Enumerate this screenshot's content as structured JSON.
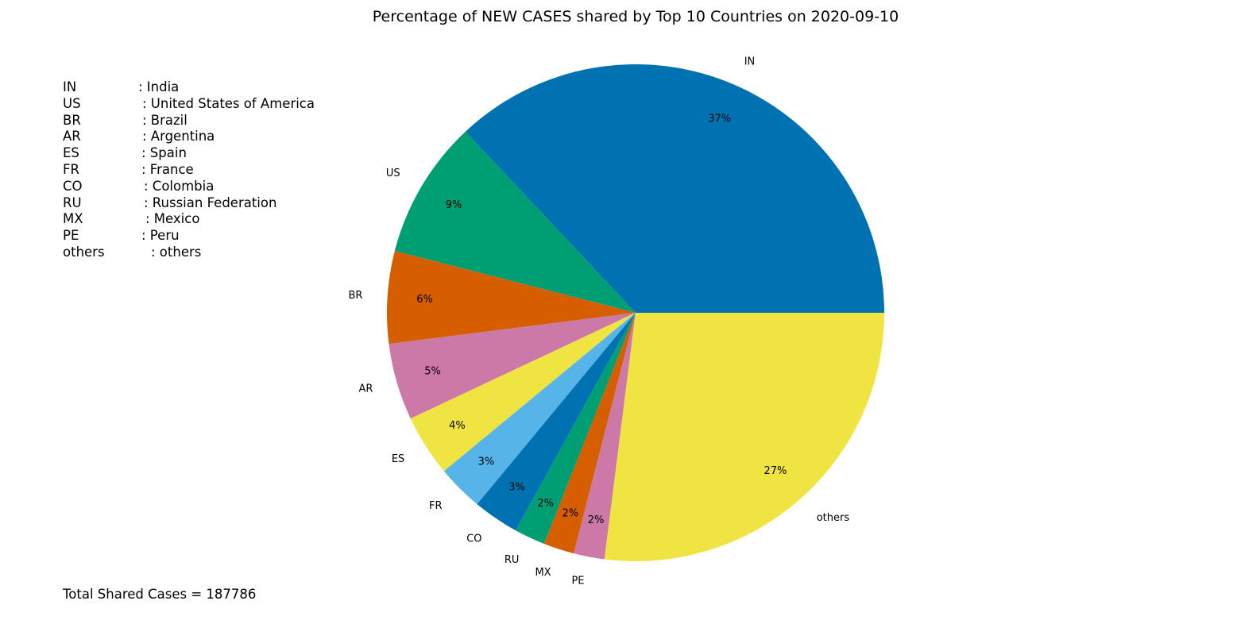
{
  "chart_data": {
    "type": "pie",
    "title": "Percentage of NEW CASES shared by Top 10 Countries on 2020-09-10",
    "slices": [
      {
        "label": "IN",
        "value": 37,
        "pct_label": "37%",
        "color": "#0072B2"
      },
      {
        "label": "US",
        "value": 9,
        "pct_label": "9%",
        "color": "#009E73"
      },
      {
        "label": "BR",
        "value": 6,
        "pct_label": "6%",
        "color": "#D55E00"
      },
      {
        "label": "AR",
        "value": 5,
        "pct_label": "5%",
        "color": "#CC79A7"
      },
      {
        "label": "ES",
        "value": 4,
        "pct_label": "4%",
        "color": "#F0E442"
      },
      {
        "label": "FR",
        "value": 3,
        "pct_label": "3%",
        "color": "#56B4E9"
      },
      {
        "label": "CO",
        "value": 3,
        "pct_label": "3%",
        "color": "#0072B2"
      },
      {
        "label": "RU",
        "value": 2,
        "pct_label": "2%",
        "color": "#009E73"
      },
      {
        "label": "MX",
        "value": 2,
        "pct_label": "2%",
        "color": "#D55E00"
      },
      {
        "label": "PE",
        "value": 2,
        "pct_label": "2%",
        "color": "#CC79A7"
      },
      {
        "label": "others",
        "value": 27,
        "pct_label": "27%",
        "color": "#F0E442"
      }
    ],
    "legend_entries": [
      {
        "code": "IN",
        "name": ": India"
      },
      {
        "code": "US",
        "name": ": United States of America"
      },
      {
        "code": "BR",
        "name": ": Brazil"
      },
      {
        "code": "AR",
        "name": ": Argentina"
      },
      {
        "code": "ES",
        "name": ": Spain"
      },
      {
        "code": "FR",
        "name": ": France"
      },
      {
        "code": "CO",
        "name": ": Colombia"
      },
      {
        "code": "RU",
        "name": ": Russian Federation"
      },
      {
        "code": "MX",
        "name": ": Mexico"
      },
      {
        "code": "PE",
        "name": ": Peru"
      },
      {
        "code": "others",
        "name": ": others"
      }
    ],
    "total_text": "Total Shared Cases = 187786",
    "legend_placement": "left"
  }
}
